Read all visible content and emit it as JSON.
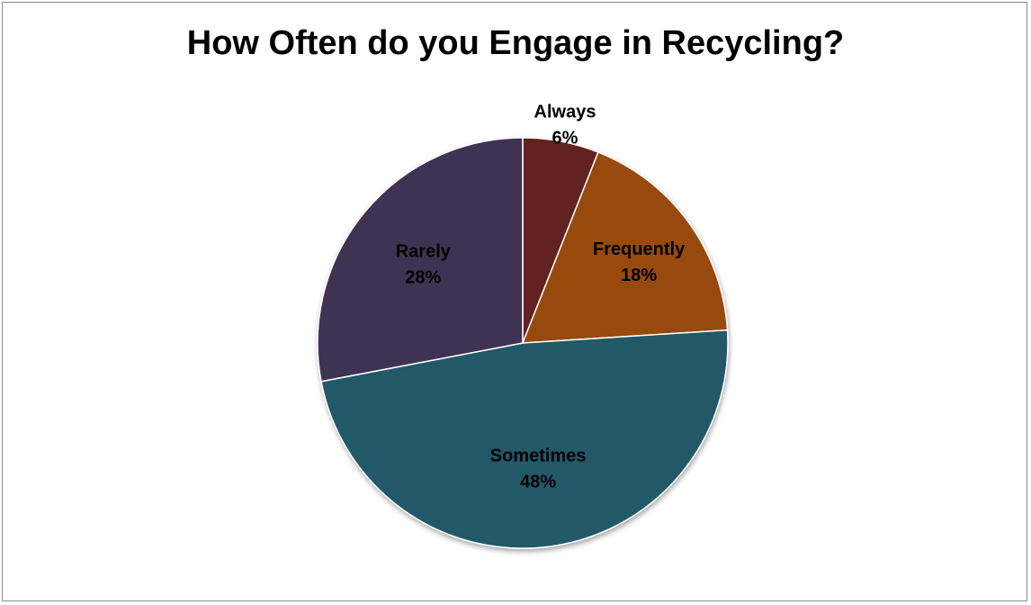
{
  "chart_data": {
    "type": "pie",
    "title": "How Often do you Engage in Recycling?",
    "categories": [
      "Always",
      "Frequently",
      "Sometimes",
      "Rarely"
    ],
    "values": [
      6,
      18,
      48,
      28
    ],
    "value_labels": [
      "6%",
      "18%",
      "48%",
      "28%"
    ],
    "colors": [
      "#632423",
      "#984807",
      "#215968",
      "#403152"
    ],
    "start_angle_deg": 0,
    "direction": "clockwise",
    "legend": "none",
    "labels_position": "inside"
  }
}
